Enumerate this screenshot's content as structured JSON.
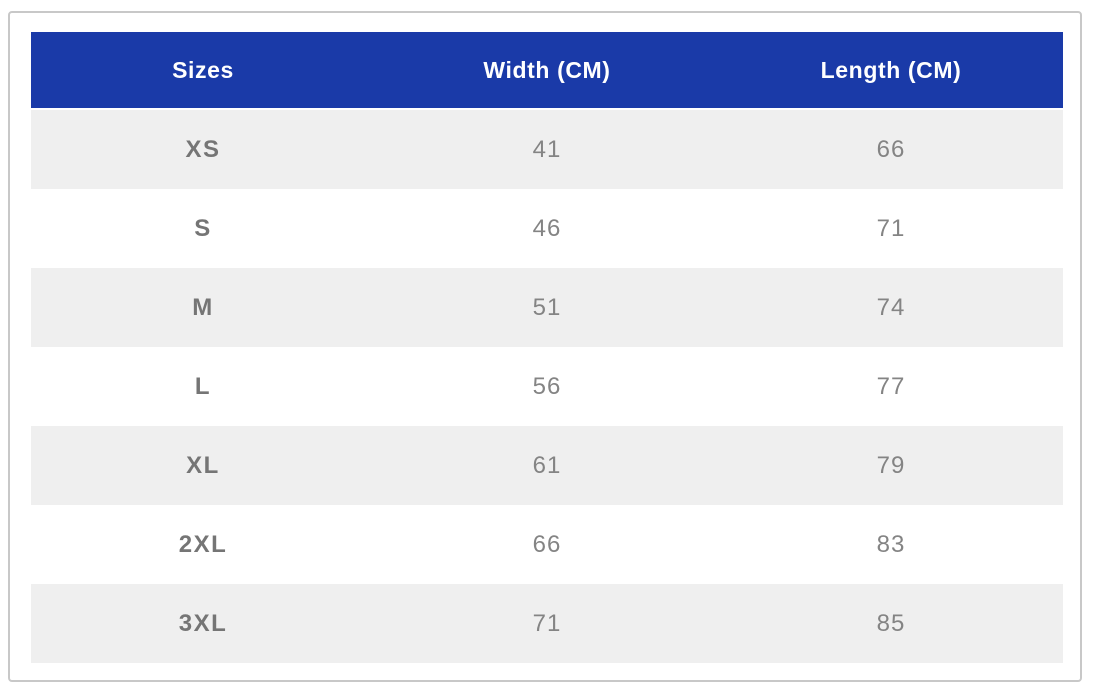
{
  "colors": {
    "header_bg": "#1a3aa8",
    "header_text": "#ffffff",
    "row_alt_bg": "#efefef",
    "row_bg": "#ffffff",
    "size_text": "#757575",
    "value_text": "#848484",
    "card_border": "#c8c8c8"
  },
  "chart_data": {
    "type": "table",
    "title": "",
    "columns": [
      "Sizes",
      "Width (CM)",
      "Length (CM)"
    ],
    "rows": [
      {
        "size": "XS",
        "width": "41",
        "length": "66"
      },
      {
        "size": "S",
        "width": "46",
        "length": "71"
      },
      {
        "size": "M",
        "width": "51",
        "length": "74"
      },
      {
        "size": "L",
        "width": "56",
        "length": "77"
      },
      {
        "size": "XL",
        "width": "61",
        "length": "79"
      },
      {
        "size": "2XL",
        "width": "66",
        "length": "83"
      },
      {
        "size": "3XL",
        "width": "71",
        "length": "85"
      }
    ]
  }
}
